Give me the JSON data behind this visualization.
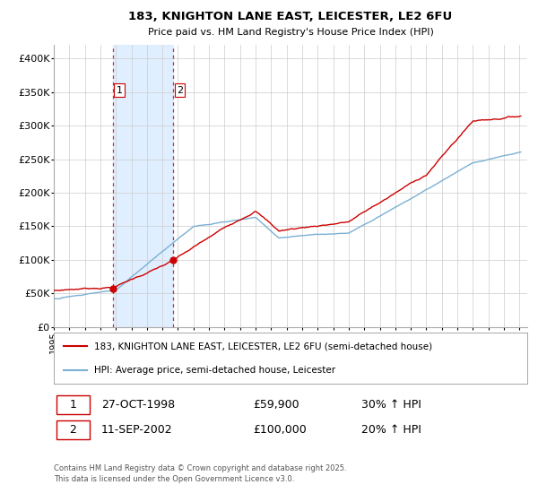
{
  "title": "183, KNIGHTON LANE EAST, LEICESTER, LE2 6FU",
  "subtitle": "Price paid vs. HM Land Registry's House Price Index (HPI)",
  "legend_line1": "183, KNIGHTON LANE EAST, LEICESTER, LE2 6FU (semi-detached house)",
  "legend_line2": "HPI: Average price, semi-detached house, Leicester",
  "sale1_date": "27-OCT-1998",
  "sale1_price": "£59,900",
  "sale1_hpi": "30% ↑ HPI",
  "sale2_date": "11-SEP-2002",
  "sale2_price": "£100,000",
  "sale2_hpi": "20% ↑ HPI",
  "footer": "Contains HM Land Registry data © Crown copyright and database right 2025.\nThis data is licensed under the Open Government Licence v3.0.",
  "red_color": "#cc0000",
  "blue_color": "#7ab0d4",
  "shade_color": "#ddeeff",
  "grid_color": "#cccccc",
  "bg_color": "#ffffff",
  "ylim": [
    0,
    420000
  ],
  "yticks": [
    0,
    50000,
    100000,
    150000,
    200000,
    250000,
    300000,
    350000,
    400000
  ],
  "ytick_labels": [
    "£0",
    "£50K",
    "£100K",
    "£150K",
    "£200K",
    "£250K",
    "£300K",
    "£350K",
    "£400K"
  ],
  "sale1_x": 1998.82,
  "sale2_x": 2002.7,
  "xmin": 1995,
  "xmax": 2025.5
}
